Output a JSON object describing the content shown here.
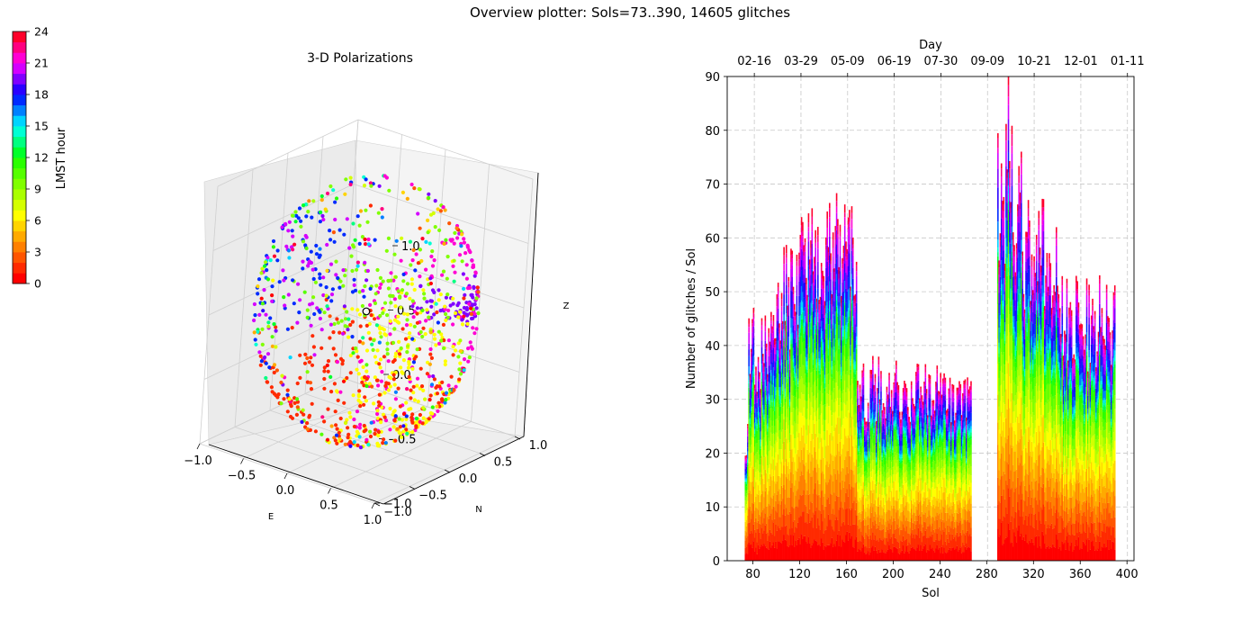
{
  "figure": {
    "title": "Overview plotter: Sols=73..390, 14605 glitches"
  },
  "colorbar": {
    "label": "LMST hour",
    "ticks": [
      "0",
      "3",
      "6",
      "9",
      "12",
      "15",
      "18",
      "21",
      "24"
    ],
    "colors": [
      "#ff0000",
      "#ff2a00",
      "#ff5500",
      "#ff8000",
      "#ffaa00",
      "#ffd400",
      "#ffff00",
      "#d4ff00",
      "#aaff00",
      "#80ff00",
      "#55ff00",
      "#2aff00",
      "#00ff2a",
      "#00ff80",
      "#00ffd4",
      "#00d4ff",
      "#0080ff",
      "#002aff",
      "#2a00ff",
      "#8000ff",
      "#d400ff",
      "#ff00d4",
      "#ff0080",
      "#ff002a"
    ]
  },
  "chart_data": [
    {
      "type": "scatter",
      "title": "3-D Polarizations",
      "xlabel": "E",
      "ylabel": "N",
      "zlabel": "Z",
      "xlim": [
        -1,
        1
      ],
      "ylim": [
        -1,
        1
      ],
      "zlim": [
        -1,
        1
      ],
      "xticks": [
        "−1.0",
        "−0.5",
        "0.0",
        "0.5",
        "1.0"
      ],
      "yticks": [
        "−1.0",
        "−0.5",
        "0.0",
        "0.5",
        "1.0"
      ],
      "zticks": [
        "−1.0",
        "−0.5",
        "0.0",
        "0.5",
        "1.0"
      ],
      "grid": true,
      "clusters": [
        {
          "lmst_hour": 19,
          "e_range": [
            0.3,
            1.0
          ],
          "n_range": [
            0.1,
            0.4
          ],
          "z_range": [
            0.05,
            0.25
          ],
          "count": 70
        },
        {
          "lmst_hour": 21,
          "e_range": [
            0.6,
            1.0
          ],
          "n_range": [
            -1.0,
            1.0
          ],
          "z_range": [
            -0.9,
            0.9
          ],
          "count": 150
        },
        {
          "lmst_hour": 6,
          "e_range": [
            0.2,
            0.9
          ],
          "n_range": [
            -0.8,
            0.4
          ],
          "z_range": [
            -0.9,
            0.3
          ],
          "count": 200
        },
        {
          "lmst_hour": 1,
          "e_range": [
            -0.8,
            0.8
          ],
          "n_range": [
            -1.0,
            1.0
          ],
          "z_range": [
            -1.0,
            -0.2
          ],
          "count": 200
        },
        {
          "lmst_hour": 9,
          "e_range": [
            -0.5,
            0.5
          ],
          "n_range": [
            -0.2,
            0.6
          ],
          "z_range": [
            -0.3,
            0.4
          ],
          "count": 120
        },
        {
          "lmst_hour": 17,
          "e_range": [
            -1.0,
            -0.2
          ],
          "n_range": [
            -0.5,
            0.5
          ],
          "z_range": [
            -0.2,
            0.6
          ],
          "count": 80
        },
        {
          "lmst_hour": 20,
          "e_range": [
            -1.0,
            -0.4
          ],
          "n_range": [
            -0.6,
            0.6
          ],
          "z_range": [
            -0.4,
            0.6
          ],
          "count": 60
        }
      ]
    },
    {
      "type": "bar",
      "stacked": true,
      "xlabel": "Sol",
      "ylabel": "Number of glitches / Sol",
      "top_xlabel": "Day",
      "xlim": [
        58,
        406
      ],
      "ylim": [
        0,
        90
      ],
      "xticks": [
        80,
        120,
        160,
        200,
        240,
        280,
        320,
        360,
        400
      ],
      "yticks": [
        0,
        10,
        20,
        30,
        40,
        50,
        60,
        70,
        80,
        90
      ],
      "top_ticks": [
        {
          "sol": 81.2,
          "label": "02-16"
        },
        {
          "sol": 121.1,
          "label": "03-29"
        },
        {
          "sol": 161.0,
          "label": "05-09"
        },
        {
          "sol": 200.9,
          "label": "06-19"
        },
        {
          "sol": 240.8,
          "label": "07-30"
        },
        {
          "sol": 280.7,
          "label": "09-09"
        },
        {
          "sol": 320.6,
          "label": "10-21"
        },
        {
          "sol": 360.5,
          "label": "12-01"
        },
        {
          "sol": 400.4,
          "label": "01-11"
        }
      ],
      "grid": true,
      "segments": [
        {
          "sol_range": [
            73,
            76
          ],
          "total_per_sol": 25
        },
        {
          "sol_range": [
            76,
            100
          ],
          "total_per_sol": 40
        },
        {
          "sol_range": [
            100,
            120
          ],
          "total_per_sol": 50
        },
        {
          "sol_range": [
            120,
            169
          ],
          "total_per_sol": 58
        },
        {
          "sol_range": [
            169,
            267
          ],
          "total_per_sol": 32
        },
        {
          "sol_range": [
            267,
            289
          ],
          "total_per_sol": 0
        },
        {
          "sol_range": [
            289,
            310
          ],
          "total_per_sol": 68
        },
        {
          "sol_range": [
            310,
            340
          ],
          "total_per_sol": 58
        },
        {
          "sol_range": [
            340,
            390
          ],
          "total_per_sol": 45
        }
      ],
      "peak": {
        "sol": 298,
        "value": 90
      }
    }
  ]
}
